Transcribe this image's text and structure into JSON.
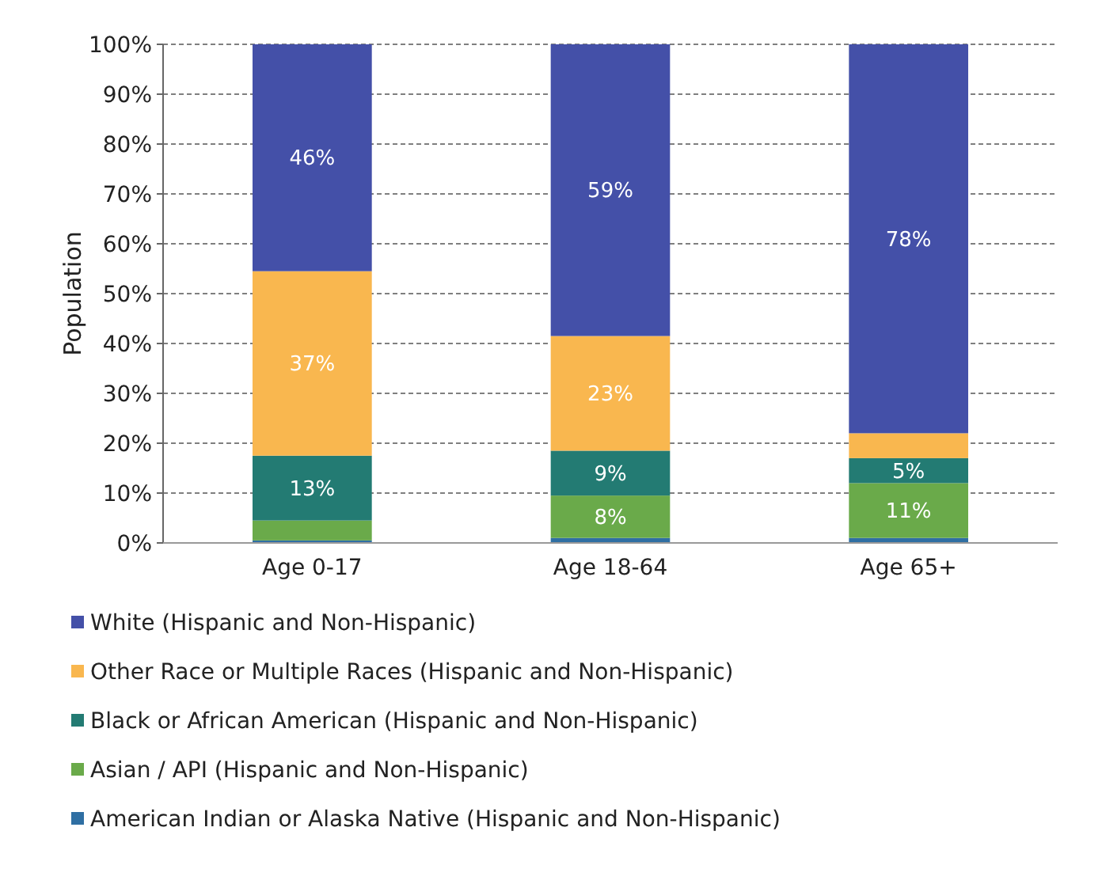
{
  "chart_data": {
    "type": "bar",
    "stacked": true,
    "ylabel": "Population",
    "categories": [
      "Age 0-17",
      "Age 18-64",
      "Age 65+"
    ],
    "series": [
      {
        "name": "American Indian or Alaska Native (Hispanic and Non-Hispanic)",
        "color": "#2f6fa3",
        "values": [
          0.5,
          1,
          1
        ],
        "value_labels": [
          null,
          null,
          null
        ]
      },
      {
        "name": "Asian / API (Hispanic and Non-Hispanic)",
        "color": "#6aaa4a",
        "values": [
          4,
          8.5,
          11
        ],
        "value_labels": [
          null,
          "8%",
          "11%"
        ]
      },
      {
        "name": "Black or African American (Hispanic and Non-Hispanic)",
        "color": "#237b73",
        "values": [
          13,
          9,
          5
        ],
        "value_labels": [
          "13%",
          "9%",
          "5%"
        ]
      },
      {
        "name": "Other Race or Multiple Races (Hispanic and Non-Hispanic)",
        "color": "#f9b74f",
        "values": [
          37,
          23,
          5
        ],
        "value_labels": [
          "37%",
          "23%",
          null
        ]
      },
      {
        "name": "White (Hispanic and Non-Hispanic)",
        "color": "#4450a8",
        "values": [
          45.5,
          58.5,
          78
        ],
        "value_labels": [
          "46%",
          "59%",
          "78%"
        ]
      }
    ],
    "ylim": [
      0,
      100
    ],
    "yticks": [
      {
        "value": 0,
        "label": "0%"
      },
      {
        "value": 10,
        "label": "10%"
      },
      {
        "value": 20,
        "label": "20%"
      },
      {
        "value": 30,
        "label": "30%"
      },
      {
        "value": 40,
        "label": "40%"
      },
      {
        "value": 50,
        "label": "50%"
      },
      {
        "value": 60,
        "label": "60%"
      },
      {
        "value": 70,
        "label": "70%"
      },
      {
        "value": 80,
        "label": "80%"
      },
      {
        "value": 90,
        "label": "90%"
      },
      {
        "value": 100,
        "label": "100%"
      }
    ],
    "grid": "y",
    "legend": "bottom"
  }
}
